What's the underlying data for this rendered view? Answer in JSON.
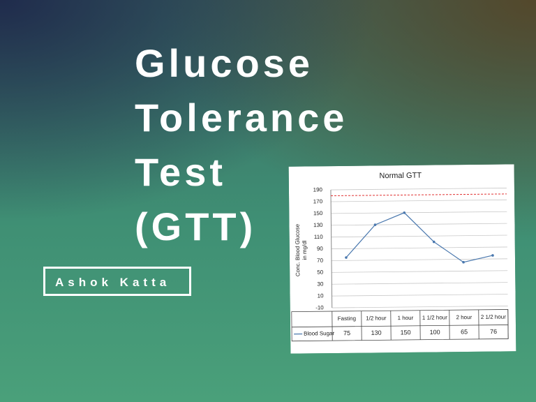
{
  "title_lines": [
    "Glucose",
    "Tolerance",
    "Test",
    "(GTT)"
  ],
  "author": "Ashok Katta",
  "chart_data": {
    "type": "line",
    "title": "Normal GTT",
    "y_label_lines": [
      "Conc. Blood Glucose",
      "in mg/dl"
    ],
    "categories": [
      "Fasting",
      "1/2 hour",
      "1 hour",
      "1 1/2 hour",
      "2 hour",
      "2 1/2 hour"
    ],
    "series": [
      {
        "name": "Blood Sugar",
        "color": "#4a78ae",
        "values": [
          75,
          130,
          150,
          100,
          65,
          76
        ]
      }
    ],
    "ylim": [
      -10,
      190
    ],
    "yticks": [
      -10,
      10,
      30,
      50,
      70,
      90,
      110,
      130,
      150,
      170,
      190
    ],
    "grid": true,
    "reference_line": {
      "value": 180,
      "color": "#e03030"
    }
  }
}
